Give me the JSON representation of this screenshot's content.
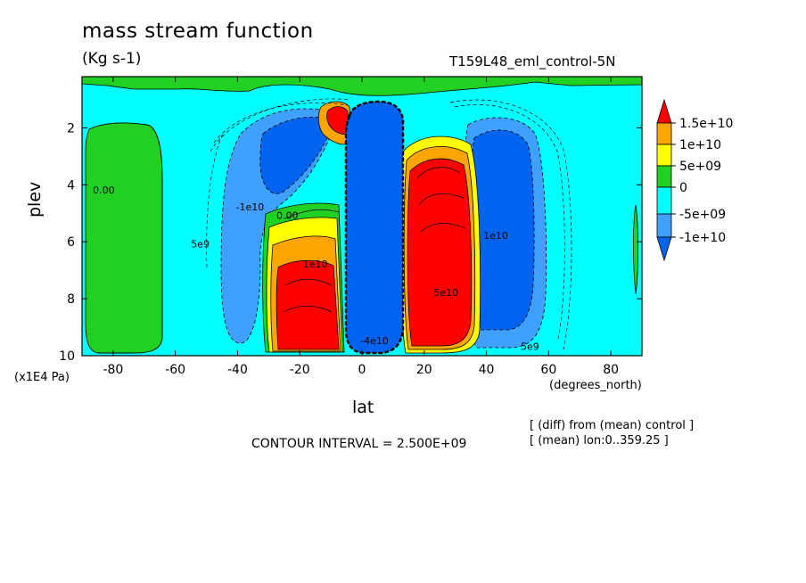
{
  "title": "mass stream function",
  "units": "(Kg s-1)",
  "run_label": "T159L48_eml_control-5N",
  "y_unit": "(x1E4 Pa)",
  "x_unit": "(degrees_north)",
  "contour_interval": "CONTOUR INTERVAL = 2.500E+09",
  "notes": [
    "[ (diff) from (mean) control ]",
    "[ (mean) lon:0..359.25 ]"
  ],
  "colors": {
    "red": "#ff0000",
    "orange": "#ffa500",
    "yellow": "#ffff00",
    "green": "#21d121",
    "cyan": "#00ffff",
    "lightblue": "#40a0ff",
    "blue": "#0064f0"
  },
  "chart_data": {
    "type": "heatmap",
    "xlabel": "lat",
    "ylabel": "plev",
    "xlim": [
      -90,
      90
    ],
    "ylim": [
      10,
      0.2
    ],
    "x_ticks": [
      -80,
      -60,
      -40,
      -20,
      0,
      20,
      40,
      60,
      80
    ],
    "y_ticks": [
      2,
      4,
      6,
      8,
      10
    ],
    "colorbar": {
      "labels": [
        "1.5e+10",
        "1e+10",
        "5e+09",
        "0",
        "-5e+09",
        "-1e+10"
      ],
      "levels": [
        15000000000.0,
        10000000000.0,
        5000000000.0,
        0,
        -5000000000.0,
        -10000000000.0
      ]
    },
    "cells": [
      {
        "name": "northern-hadley-cell-positive",
        "lat_center": 26,
        "plev_center": 6.3,
        "peak": 15000000000.0
      },
      {
        "name": "southern-hadley-cell-positive",
        "lat_center": -20,
        "plev_center": 7.8,
        "peak": 15000000000.0
      },
      {
        "name": "equatorial-negative-cell",
        "lat_center": 3,
        "plev_center": 5.5,
        "peak": -10000000000.0
      },
      {
        "name": "southern-ferrel-negative-cell",
        "lat_center": -35,
        "plev_center": 5,
        "peak": -10000000000.0
      },
      {
        "name": "northern-ferrel-negative-cell",
        "lat_center": 45,
        "plev_center": 5.5,
        "peak": -10000000000.0
      },
      {
        "name": "southern-polar-positive-cell",
        "lat_center": -78,
        "plev_center": 6,
        "peak": 5000000000.0
      }
    ],
    "contour_labels": [
      {
        "text": "0.00",
        "lat": -83,
        "plev": 4.3
      },
      {
        "text": "5e9",
        "lat": -52,
        "plev": 6.2
      },
      {
        "text": "0.00",
        "lat": -24,
        "plev": 5.2
      },
      {
        "text": "1e10",
        "lat": -15,
        "plev": 6.9
      },
      {
        "text": "-1e10",
        "lat": -36,
        "plev": 4.9
      },
      {
        "text": "5e10",
        "lat": 27,
        "plev": 7.9
      },
      {
        "text": "-4e10",
        "lat": 4,
        "plev": 9.6
      },
      {
        "text": "5e9",
        "lat": 54,
        "plev": 9.8
      },
      {
        "text": "1e10",
        "lat": 43,
        "plev": 5.9
      }
    ]
  }
}
